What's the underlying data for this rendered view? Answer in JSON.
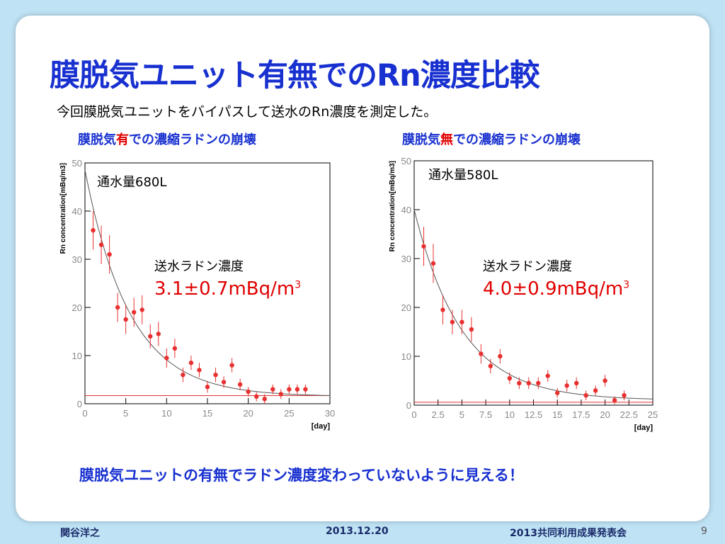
{
  "slide": {
    "title": "膜脱気ユニット有無でのRn濃度比較",
    "intro": "今回膜脱気ユニットをバイパスして送水のRn濃度を測定した。",
    "left": {
      "subtitle_pre": "膜脱気",
      "subtitle_hl": "有",
      "subtitle_post": "での濃縮ラドンの崩壊",
      "volume": "通水量680L",
      "label": "送水ラドン濃度",
      "concentration": "3.1±0.7mBq/m",
      "unit_sup": "3"
    },
    "right": {
      "subtitle_pre": "膜脱気",
      "subtitle_hl": "無",
      "subtitle_post": "での濃縮ラドンの崩壊",
      "volume": "通水量580L",
      "label": "送水ラドン濃度",
      "concentration": "4.0±0.9mBq/m",
      "unit_sup": "3"
    },
    "conclusion": "膜脱気ユニットの有無でラドン濃度変わっていないように見える！"
  },
  "footer": {
    "author": "関谷洋之",
    "date": "2013.12.20",
    "event": "2013共同利用成果発表会",
    "page": "9"
  },
  "colors": {
    "title": "#1830d0",
    "highlight": "#e00000",
    "data_point": "#e83030",
    "fit_line": "#555555",
    "baseline": "#e03030"
  },
  "chart_data": [
    {
      "type": "scatter",
      "xlabel": "[day]",
      "ylabel": "Rn concentration[mBq/m3]",
      "xlim": [
        0,
        30
      ],
      "ylim": [
        0,
        50
      ],
      "xticks": [
        0,
        5,
        10,
        15,
        20,
        25,
        30
      ],
      "yticks": [
        0,
        10,
        20,
        30,
        40,
        50
      ],
      "x": [
        1,
        2,
        3,
        4,
        5,
        6,
        7,
        8,
        9,
        10,
        11,
        12,
        13,
        14,
        15,
        16,
        17,
        18,
        19,
        20,
        21,
        22,
        23,
        24,
        25,
        26,
        27
      ],
      "y": [
        36,
        33,
        31,
        20,
        17.5,
        19,
        19.5,
        14,
        14.5,
        9.5,
        11.5,
        6,
        8.5,
        7,
        3.5,
        6,
        4.5,
        8,
        4,
        2.5,
        1.5,
        1,
        3,
        2,
        3,
        3,
        3
      ],
      "yerr": [
        4,
        4,
        4,
        3,
        3,
        3,
        3,
        2.5,
        2.5,
        2,
        2,
        1.5,
        1.5,
        1.5,
        1.2,
        1.5,
        1.2,
        1.5,
        1.2,
        1,
        1,
        1,
        1,
        1,
        1,
        1,
        1
      ],
      "fit": {
        "amplitude": 47,
        "tau_days": 5.5,
        "offset": 1.5
      },
      "baseline": 1.7
    },
    {
      "type": "scatter",
      "xlabel": "[day]",
      "ylabel": "Rn concentration[mBq/m3]",
      "xlim": [
        0,
        25
      ],
      "ylim": [
        0,
        50
      ],
      "xticks": [
        0,
        2.5,
        5,
        7.5,
        10,
        12.5,
        15,
        17.5,
        20,
        22.5,
        25
      ],
      "yticks": [
        0,
        10,
        20,
        30,
        40,
        50
      ],
      "x": [
        1,
        2,
        3,
        4,
        5,
        6,
        7,
        8,
        9,
        10,
        11,
        12,
        13,
        14,
        15,
        16,
        17,
        18,
        19,
        20,
        21,
        22
      ],
      "y": [
        32.5,
        29,
        19.5,
        17,
        17,
        15.5,
        10.5,
        8,
        10,
        5.5,
        4.5,
        4.5,
        4.5,
        6,
        2.5,
        4,
        4.5,
        2,
        3,
        5,
        1,
        2
      ],
      "yerr": [
        4,
        4,
        3,
        2.5,
        2.5,
        2.5,
        2,
        1.5,
        1.5,
        1.2,
        1.2,
        1.2,
        1.2,
        1.2,
        1,
        1.2,
        1.2,
        1,
        1,
        1.2,
        0.8,
        1
      ],
      "fit": {
        "amplitude": 39,
        "tau_days": 5.0,
        "offset": 1.0
      },
      "baseline": 0.6
    }
  ]
}
